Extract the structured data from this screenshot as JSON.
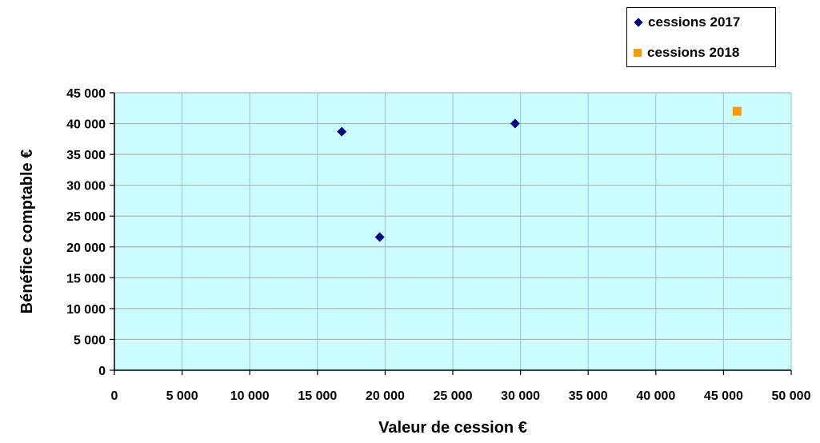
{
  "chart_data": {
    "type": "scatter",
    "xlabel": "Valeur de cession €",
    "ylabel": "Bénéfice comptable €",
    "xlim": [
      0,
      50000
    ],
    "ylim": [
      0,
      45000
    ],
    "x_ticks": [
      "0",
      "5 000",
      "10 000",
      "15 000",
      "20 000",
      "25 000",
      "30 000",
      "35 000",
      "40 000",
      "45 000",
      "50 000"
    ],
    "y_ticks": [
      "0",
      "5 000",
      "10 000",
      "15 000",
      "20 000",
      "25 000",
      "30 000",
      "35 000",
      "40 000",
      "45 000"
    ],
    "grid": true,
    "legend_position": "top-right",
    "plot_background": "#CCFFFF",
    "series": [
      {
        "name": "cessions 2017",
        "marker": "diamond",
        "color": "#000080",
        "points": [
          {
            "x": 16800,
            "y": 38700
          },
          {
            "x": 19600,
            "y": 21600
          },
          {
            "x": 29600,
            "y": 40000
          }
        ]
      },
      {
        "name": "cessions 2018",
        "marker": "square",
        "color": "#FF9900",
        "points": [
          {
            "x": 46000,
            "y": 42000
          }
        ]
      }
    ]
  }
}
